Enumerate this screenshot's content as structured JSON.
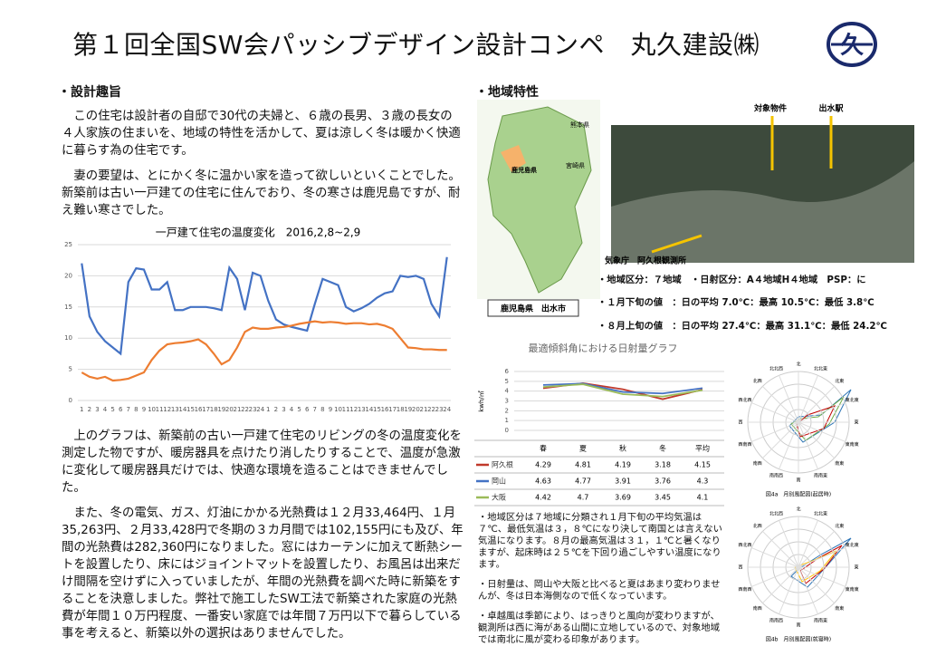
{
  "header": {
    "title": "第１回全国SW会パッシブデザイン設計コンペ　丸久建設㈱",
    "logo": "久"
  },
  "design": {
    "heading": "・設計趣旨",
    "paragraphs": [
      "この住宅は設計者の自邸で30代の夫婦と、６歳の長男、３歳の長女の４人家族の住まいを、地域の特性を活かして、夏は涼しく冬は暖かく快適に暮らす為の住宅です。",
      "妻の要望は、とにかく冬に温かい家を造って欲しいといくことでした。新築前は古い一戸建ての住宅に住んでおり、冬の寒さは鹿児島ですが、耐え難い寒さでした。"
    ],
    "paragraphs2": [
      "上のグラフは、新築前の古い一戸建て住宅のリビングの冬の温度変化を測定した物ですが、暖房器具を点けたり消したりすることで、温度が急激に変化して暖房器具だけでは、快適な環境を造ることはできませんでした。",
      "また、冬の電気、ガス、灯油にかかる光熱費は１２月33,464円、１月35,263円、２月33,428円で冬期の３カ月間では102,155円にも及び、年間の光熱費は282,360円になりました。窓にはカーテンに加えて断熱シートを設置したり、床にはジョイントマットを設置したり、お風呂は出来だけ間隔を空けずに入っていましたが、年間の光熱費を調べた時に新築をすることを決意しました。弊社で施工したSW工法で新築された家庭の光熱費が年間１０万円程度、一番安い家庭では年間７万円以下で暮らしている事を考えると、新築以外の選択はありませんでした。"
    ]
  },
  "temp_chart": {
    "type": "line",
    "title": "一戸建て住宅の温度変化　2016,2,8~2,9",
    "categories": [
      "1",
      "2",
      "3",
      "4",
      "5",
      "6",
      "7",
      "8",
      "9",
      "10",
      "11",
      "12",
      "13",
      "14",
      "15",
      "16",
      "17",
      "18",
      "19",
      "20",
      "21",
      "22",
      "23",
      "24",
      "1",
      "2",
      "3",
      "4",
      "5",
      "6",
      "7",
      "8",
      "9",
      "10",
      "11",
      "12",
      "13",
      "14",
      "15",
      "16",
      "17",
      "18",
      "19",
      "20",
      "21",
      "22",
      "23",
      "24"
    ],
    "series": [
      {
        "color": "#4472c4",
        "values": [
          22,
          13.5,
          11,
          9.5,
          8.5,
          7.5,
          19,
          21.2,
          21,
          17.8,
          17.8,
          19,
          14.5,
          14.5,
          15,
          15,
          15,
          14.8,
          14.5,
          21.3,
          19.5,
          14.5,
          20.5,
          20,
          16,
          13,
          12.2,
          11.8,
          11.5,
          11.2,
          15.5,
          19.5,
          19,
          18.5,
          15,
          14.3,
          14.8,
          15.5,
          16.5,
          17.2,
          17.5,
          20,
          19.8,
          20,
          19.5,
          15.5,
          13.5,
          23
        ]
      },
      {
        "color": "#ed7d31",
        "values": [
          4.5,
          3.8,
          3.5,
          3.8,
          3.2,
          3.3,
          3.5,
          4,
          4.5,
          6.5,
          8,
          9,
          9.2,
          9.3,
          9.5,
          9.8,
          9,
          7.5,
          5.8,
          6.5,
          8.5,
          11,
          11.7,
          11.5,
          11.5,
          11.7,
          11.8,
          12,
          12.3,
          12.5,
          12.7,
          12.5,
          12.6,
          12.5,
          12.3,
          12.4,
          12.4,
          12.2,
          12.3,
          12,
          11.5,
          10,
          8.5,
          8.4,
          8.2,
          8.2,
          8.1,
          8.1
        ]
      }
    ],
    "ylim": [
      0,
      25
    ],
    "yticks": [
      0,
      5,
      10,
      15,
      20,
      25
    ],
    "grid": true
  },
  "region": {
    "heading": "・地域特性",
    "map_labels": [
      "熊本県",
      "宮崎県",
      "鹿児島県"
    ],
    "map_caption": "鹿児島県　出水市",
    "photo_labels": [
      "対象物件",
      "出水駅",
      "気象庁　阿久根観測所"
    ],
    "info": [
      "・地域区分：７地域　・日射区分：A４地域H４地域　PSP：に",
      "・１月下旬の値　：日の平均 7.0℃：最高 10.5℃：最低 3.8℃",
      "・８月上旬の値　：日の平均 27.4℃：最高 31.1℃：最低 24.2℃"
    ]
  },
  "solar_chart": {
    "type": "line",
    "title": "最適傾斜角における日射量グラフ",
    "y_label": "kwh/㎡",
    "categories": [
      "春",
      "夏",
      "秋",
      "冬",
      "平均"
    ],
    "series": [
      {
        "name": "阿久根",
        "color": "#c0392b",
        "values": [
          4.29,
          4.81,
          4.19,
          3.18,
          4.15
        ]
      },
      {
        "name": "岡山",
        "color": "#4472c4",
        "values": [
          4.63,
          4.77,
          3.91,
          3.76,
          4.3
        ]
      },
      {
        "name": "大阪",
        "color": "#9bbb59",
        "values": [
          4.42,
          4.7,
          3.69,
          3.45,
          4.1
        ]
      }
    ],
    "ylim": [
      0,
      6
    ],
    "yticks": [
      0,
      1,
      2,
      3,
      4,
      5,
      6
    ],
    "grid": true
  },
  "wind": {
    "directions": [
      "北",
      "北北東",
      "北東",
      "東北東",
      "東",
      "東南東",
      "南東",
      "南南東",
      "南",
      "南南西",
      "南西",
      "西南西",
      "西",
      "西北西",
      "北西",
      "北北西"
    ],
    "captions": [
      "図4a　月別風配図(起居時)",
      "図4b　月別風配図(就寝時)"
    ]
  },
  "notes": [
    "・地域区分は７地域に分類され１月下旬の平均気温は７℃、最低気温は３，８℃になり決して南国とは言えない気温になります。８月の最高気温は３１，１℃と暑くなりますが、起床時は２５℃を下回り過ごしやすい温度になります。",
    "・日射量は、岡山や大阪と比べると夏はあまり変わりませんが、冬は日本海側なので低くなっています。",
    "・卓越風は季節により、はっきりと風向が変わりますが、観測所は西に海がある山間に立地しているので、対象地域では南北に風が変わる印象があります。"
  ]
}
